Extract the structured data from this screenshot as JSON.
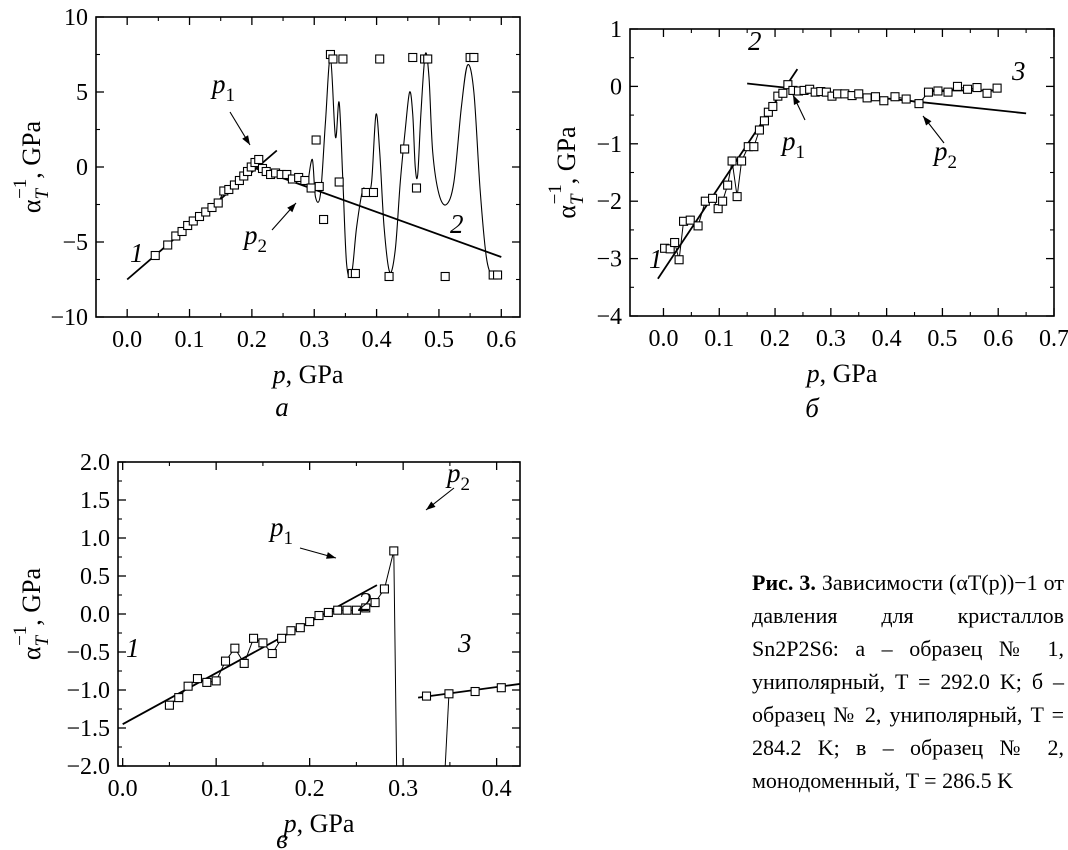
{
  "caption": {
    "label": "Рис. 3.",
    "text": "Зависимости (αT(p))−1 от давления для кристаллов Sn2P2S6: а – образец № 1, униполярный, T = 292.0 K; б – образец № 2, униполярный, T = 284.2 K; в – образец № 2, монодоменный, T = 286.5 K"
  },
  "chart_data": [
    {
      "panel": "а",
      "type": "scatter",
      "xlabel": "p, GPa",
      "ylabel": "αT−1, GPa",
      "xlim": [
        -0.05,
        0.63
      ],
      "ylim": [
        -10,
        10
      ],
      "xticks": [
        0.0,
        0.1,
        0.2,
        0.3,
        0.4,
        0.5,
        0.6
      ],
      "xtick_labels": [
        "0.0",
        "0.1",
        "0.2",
        "0.3",
        "0.4",
        "0.5",
        "0.6"
      ],
      "yticks": [
        -10,
        -5,
        0,
        5,
        10
      ],
      "ytick_labels": [
        "−10",
        "−5",
        "0",
        "5",
        "10"
      ],
      "series": [
        {
          "values": [
            [
              0.045,
              -5.9
            ],
            [
              0.065,
              -5.2
            ],
            [
              0.078,
              -4.6
            ],
            [
              0.088,
              -4.3
            ],
            [
              0.097,
              -3.9
            ],
            [
              0.106,
              -3.6
            ],
            [
              0.116,
              -3.3
            ],
            [
              0.126,
              -3.0
            ],
            [
              0.136,
              -2.7
            ],
            [
              0.146,
              -2.4
            ],
            [
              0.155,
              -1.6
            ],
            [
              0.163,
              -1.5
            ],
            [
              0.172,
              -1.2
            ],
            [
              0.18,
              -0.9
            ],
            [
              0.187,
              -0.6
            ],
            [
              0.193,
              -0.3
            ],
            [
              0.199,
              0.0
            ],
            [
              0.205,
              0.3
            ],
            [
              0.211,
              0.5
            ],
            [
              0.217,
              -0.1
            ],
            [
              0.223,
              -0.3
            ],
            [
              0.23,
              -0.5
            ],
            [
              0.238,
              -0.4
            ],
            [
              0.247,
              -0.5
            ],
            [
              0.256,
              -0.5
            ],
            [
              0.265,
              -0.8
            ],
            [
              0.275,
              -0.7
            ],
            [
              0.285,
              -0.9
            ],
            [
              0.295,
              -1.4
            ],
            [
              0.303,
              1.8
            ],
            [
              0.308,
              -1.3
            ],
            [
              0.315,
              -3.5
            ],
            [
              0.326,
              7.5
            ],
            [
              0.33,
              7.2
            ],
            [
              0.34,
              -1.0
            ],
            [
              0.346,
              7.2
            ],
            [
              0.361,
              -7.1
            ],
            [
              0.366,
              -7.1
            ],
            [
              0.383,
              -1.7
            ],
            [
              0.395,
              -1.7
            ],
            [
              0.405,
              7.2
            ],
            [
              0.42,
              -7.3
            ],
            [
              0.445,
              1.2
            ],
            [
              0.458,
              7.3
            ],
            [
              0.464,
              -1.4
            ],
            [
              0.477,
              7.2
            ],
            [
              0.482,
              7.2
            ],
            [
              0.51,
              -7.3
            ],
            [
              0.55,
              7.3
            ],
            [
              0.556,
              7.3
            ],
            [
              0.587,
              -7.2
            ],
            [
              0.594,
              -7.2
            ]
          ]
        }
      ],
      "fit_lines": [
        {
          "label": "1",
          "from": [
            0.0,
            -7.5
          ],
          "to": [
            0.24,
            1.1
          ]
        },
        {
          "label": "2",
          "from": [
            0.2,
            0.0
          ],
          "to": [
            0.6,
            -6.0
          ]
        }
      ],
      "oscillation_curve": [
        [
          0.29,
          -1.0
        ],
        [
          0.297,
          0.5
        ],
        [
          0.302,
          -2.0
        ],
        [
          0.31,
          -1.8
        ],
        [
          0.318,
          3.0
        ],
        [
          0.326,
          7.3
        ],
        [
          0.334,
          2.0
        ],
        [
          0.34,
          4.3
        ],
        [
          0.346,
          -1.0
        ],
        [
          0.352,
          -6.5
        ],
        [
          0.36,
          -7.1
        ],
        [
          0.368,
          -4.0
        ],
        [
          0.378,
          -1.5
        ],
        [
          0.385,
          -1.8
        ],
        [
          0.392,
          -1.0
        ],
        [
          0.399,
          3.5
        ],
        [
          0.405,
          1.0
        ],
        [
          0.412,
          -4.0
        ],
        [
          0.421,
          -7.0
        ],
        [
          0.43,
          -5.5
        ],
        [
          0.438,
          -1.0
        ],
        [
          0.446,
          2.5
        ],
        [
          0.453,
          5.0
        ],
        [
          0.458,
          3.5
        ],
        [
          0.462,
          0.0
        ],
        [
          0.466,
          -0.5
        ],
        [
          0.471,
          3.5
        ],
        [
          0.478,
          7.5
        ],
        [
          0.484,
          6.0
        ],
        [
          0.49,
          1.0
        ],
        [
          0.5,
          -1.8
        ],
        [
          0.512,
          -2.5
        ],
        [
          0.524,
          -1.0
        ],
        [
          0.536,
          4.0
        ],
        [
          0.546,
          6.8
        ],
        [
          0.556,
          5.0
        ],
        [
          0.566,
          -1.5
        ],
        [
          0.576,
          -6.0
        ],
        [
          0.586,
          -7.3
        ],
        [
          0.595,
          -7.3
        ]
      ],
      "annotations": {
        "p1": {
          "base": "p",
          "sub": "1"
        },
        "p2": {
          "base": "p",
          "sub": "2"
        },
        "line1": "1",
        "line2": "2"
      },
      "letter": "а"
    },
    {
      "panel": "б",
      "type": "scatter",
      "xlabel": "p, GPa",
      "ylabel": "αT−1, GPa",
      "xlim": [
        -0.06,
        0.7
      ],
      "ylim": [
        -4,
        1
      ],
      "xticks": [
        0.0,
        0.1,
        0.2,
        0.3,
        0.4,
        0.5,
        0.6,
        0.7
      ],
      "xtick_labels": [
        "0.0",
        "0.1",
        "0.2",
        "0.3",
        "0.4",
        "0.5",
        "0.6",
        "0.7"
      ],
      "yticks": [
        -4,
        -3,
        -2,
        -1,
        0,
        1
      ],
      "ytick_labels": [
        "−4",
        "−3",
        "−2",
        "−1",
        "0",
        "1"
      ],
      "series": [
        {
          "values": [
            [
              0.002,
              -2.82
            ],
            [
              0.012,
              -2.83
            ],
            [
              0.02,
              -2.72
            ],
            [
              0.028,
              -3.02
            ],
            [
              0.036,
              -2.35
            ],
            [
              0.048,
              -2.33
            ],
            [
              0.062,
              -2.43
            ],
            [
              0.075,
              -2.0
            ],
            [
              0.088,
              -1.95
            ],
            [
              0.098,
              -2.13
            ],
            [
              0.106,
              -2.0
            ],
            [
              0.115,
              -1.72
            ],
            [
              0.123,
              -1.3
            ],
            [
              0.132,
              -1.92
            ],
            [
              0.14,
              -1.3
            ],
            [
              0.152,
              -1.05
            ],
            [
              0.162,
              -1.05
            ],
            [
              0.172,
              -0.76
            ],
            [
              0.181,
              -0.6
            ],
            [
              0.188,
              -0.45
            ],
            [
              0.196,
              -0.35
            ],
            [
              0.205,
              -0.17
            ],
            [
              0.214,
              -0.12
            ],
            [
              0.223,
              0.03
            ],
            [
              0.232,
              -0.07
            ],
            [
              0.242,
              -0.08
            ],
            [
              0.252,
              -0.07
            ],
            [
              0.262,
              -0.05
            ],
            [
              0.272,
              -0.1
            ],
            [
              0.282,
              -0.09
            ],
            [
              0.292,
              -0.1
            ],
            [
              0.302,
              -0.17
            ],
            [
              0.312,
              -0.13
            ],
            [
              0.325,
              -0.13
            ],
            [
              0.338,
              -0.16
            ],
            [
              0.35,
              -0.13
            ],
            [
              0.365,
              -0.2
            ],
            [
              0.38,
              -0.18
            ],
            [
              0.395,
              -0.25
            ],
            [
              0.415,
              -0.18
            ],
            [
              0.435,
              -0.22
            ],
            [
              0.458,
              -0.3
            ],
            [
              0.475,
              -0.1
            ],
            [
              0.492,
              -0.08
            ],
            [
              0.51,
              -0.1
            ],
            [
              0.527,
              0.0
            ],
            [
              0.545,
              -0.05
            ],
            [
              0.562,
              -0.02
            ],
            [
              0.58,
              -0.12
            ],
            [
              0.598,
              -0.03
            ]
          ]
        }
      ],
      "fit_lines": [
        {
          "label": "1",
          "from": [
            -0.01,
            -3.35
          ],
          "to": [
            0.24,
            0.3
          ]
        },
        {
          "label": "2",
          "from": [
            0.15,
            0.05
          ],
          "to": [
            0.65,
            -0.47
          ]
        },
        {
          "label": "3",
          "from": [
            0.47,
            -0.07
          ],
          "to": [
            0.6,
            -0.07
          ]
        }
      ],
      "annotations": {
        "p1": {
          "base": "p",
          "sub": "1"
        },
        "p2": {
          "base": "p",
          "sub": "2"
        },
        "line1": "1",
        "line2": "2",
        "line3": "3"
      },
      "letter": "б"
    },
    {
      "panel": "в",
      "type": "scatter",
      "xlabel": "p, GPa",
      "ylabel": "αT−1, GPa",
      "xlim": [
        -0.005,
        0.425
      ],
      "ylim": [
        -2,
        2
      ],
      "xticks": [
        0.0,
        0.1,
        0.2,
        0.3,
        0.4
      ],
      "xtick_labels": [
        "0.0",
        "0.1",
        "0.2",
        "0.3",
        "0.4"
      ],
      "yticks": [
        -2.0,
        -1.5,
        -1.0,
        -0.5,
        0.0,
        0.5,
        1.0,
        1.5,
        2.0
      ],
      "ytick_labels": [
        "−2.0",
        "−1.5",
        "−1.0",
        "−0.5",
        "0.0",
        "0.5",
        "1.0",
        "1.5",
        "2.0"
      ],
      "series": [
        {
          "values": [
            [
              0.05,
              -1.2
            ],
            [
              0.06,
              -1.1
            ],
            [
              0.07,
              -0.95
            ],
            [
              0.08,
              -0.85
            ],
            [
              0.09,
              -0.9
            ],
            [
              0.1,
              -0.88
            ],
            [
              0.11,
              -0.62
            ],
            [
              0.12,
              -0.45
            ],
            [
              0.13,
              -0.65
            ],
            [
              0.14,
              -0.32
            ],
            [
              0.15,
              -0.38
            ],
            [
              0.16,
              -0.52
            ],
            [
              0.17,
              -0.32
            ],
            [
              0.18,
              -0.22
            ],
            [
              0.19,
              -0.18
            ],
            [
              0.2,
              -0.1
            ],
            [
              0.21,
              -0.02
            ],
            [
              0.22,
              0.02
            ],
            [
              0.23,
              0.05
            ],
            [
              0.24,
              0.05
            ],
            [
              0.25,
              0.05
            ],
            [
              0.26,
              0.08
            ],
            [
              0.27,
              0.15
            ],
            [
              0.28,
              0.33
            ],
            [
              0.29,
              0.83
            ],
            [
              0.325,
              -1.08
            ],
            [
              0.349,
              -1.05
            ],
            [
              0.377,
              -1.02
            ],
            [
              0.405,
              -0.97
            ]
          ]
        }
      ],
      "fit_lines": [
        {
          "label": "1",
          "from": [
            0.0,
            -1.45
          ],
          "to": [
            0.272,
            0.38
          ]
        },
        {
          "label": "3",
          "from": [
            0.316,
            -1.1
          ],
          "to": [
            0.425,
            -0.92
          ]
        }
      ],
      "annotations": {
        "p1": {
          "base": "p",
          "sub": "1"
        },
        "p2": {
          "base": "p",
          "sub": "2"
        },
        "line1": "1",
        "line2": "2",
        "line3": "3"
      },
      "letter": "в"
    }
  ]
}
